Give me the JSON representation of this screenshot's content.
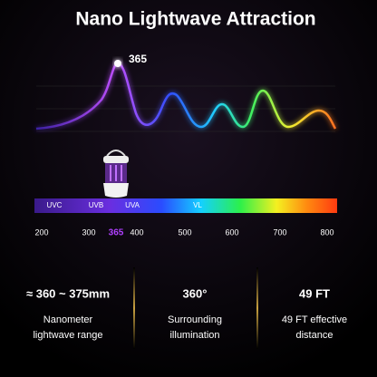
{
  "title": "Nano Lightwave Attraction",
  "wave": {
    "peak_label": "365"
  },
  "spectrum": {
    "bands": [
      "UVC",
      "UVB",
      "UVA",
      "VL"
    ]
  },
  "scale": {
    "labels": [
      "200",
      "300",
      "365",
      "400",
      "500",
      "600",
      "700",
      "800"
    ]
  },
  "stats": [
    {
      "value": "≈ 360 ~ 375mm",
      "lines": [
        "Nanometer",
        "lightwave range"
      ]
    },
    {
      "value": "360°",
      "lines": [
        "Surrounding",
        "illumination"
      ]
    },
    {
      "value": "49 FT",
      "lines": [
        "49 FT effective",
        "distance"
      ]
    }
  ]
}
